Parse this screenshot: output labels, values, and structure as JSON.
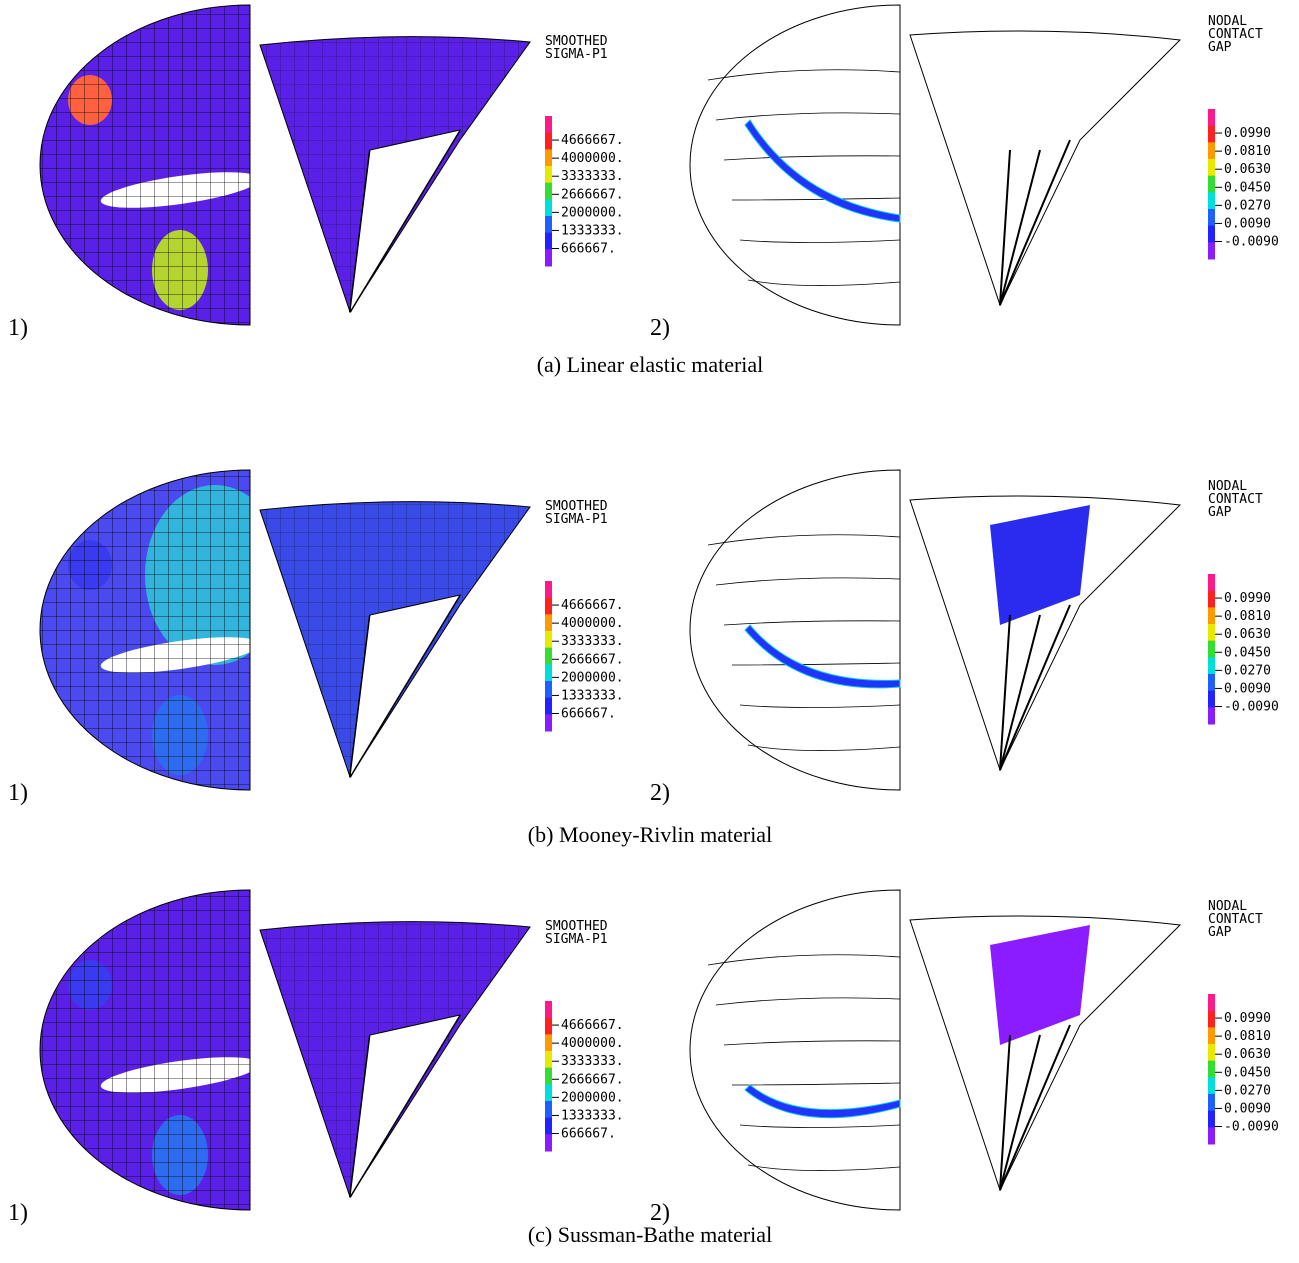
{
  "rows": [
    {
      "caption": "(a) Linear elastic material",
      "panels": [
        {
          "label": "1)",
          "legend": {
            "title": [
              "SMOOTHED",
              "SIGMA-P1"
            ],
            "ticks": [
              "4666667.",
              "4000000.",
              "3333333.",
              "2666667.",
              "2000000.",
              "1333333.",
              "666667."
            ]
          }
        },
        {
          "label": "2)",
          "legend": {
            "title": [
              "NODAL",
              "CONTACT",
              "GAP"
            ],
            "ticks": [
              "0.0990",
              "0.0810",
              "0.0630",
              "0.0450",
              "0.0270",
              "0.0090",
              "-0.0090"
            ]
          }
        }
      ]
    },
    {
      "caption": "(b) Mooney-Rivlin material",
      "panels": [
        {
          "label": "1)",
          "legend": {
            "title": [
              "SMOOTHED",
              "SIGMA-P1"
            ],
            "ticks": [
              "4666667.",
              "4000000.",
              "3333333.",
              "2666667.",
              "2000000.",
              "1333333.",
              "666667."
            ]
          }
        },
        {
          "label": "2)",
          "legend": {
            "title": [
              "NODAL",
              "CONTACT",
              "GAP"
            ],
            "ticks": [
              "0.0990",
              "0.0810",
              "0.0630",
              "0.0450",
              "0.0270",
              "0.0090",
              "-0.0090"
            ]
          }
        }
      ]
    },
    {
      "caption": "(c) Sussman-Bathe material",
      "panels": [
        {
          "label": "1)",
          "legend": {
            "title": [
              "SMOOTHED",
              "SIGMA-P1"
            ],
            "ticks": [
              "4666667.",
              "4000000.",
              "3333333.",
              "2666667.",
              "2000000.",
              "1333333.",
              "666667."
            ]
          }
        },
        {
          "label": "2)",
          "legend": {
            "title": [
              "NODAL",
              "CONTACT",
              "GAP"
            ],
            "ticks": [
              "0.0990",
              "0.0810",
              "0.0630",
              "0.0450",
              "0.0270",
              "0.0090",
              "-0.0090"
            ]
          }
        }
      ]
    }
  ]
}
